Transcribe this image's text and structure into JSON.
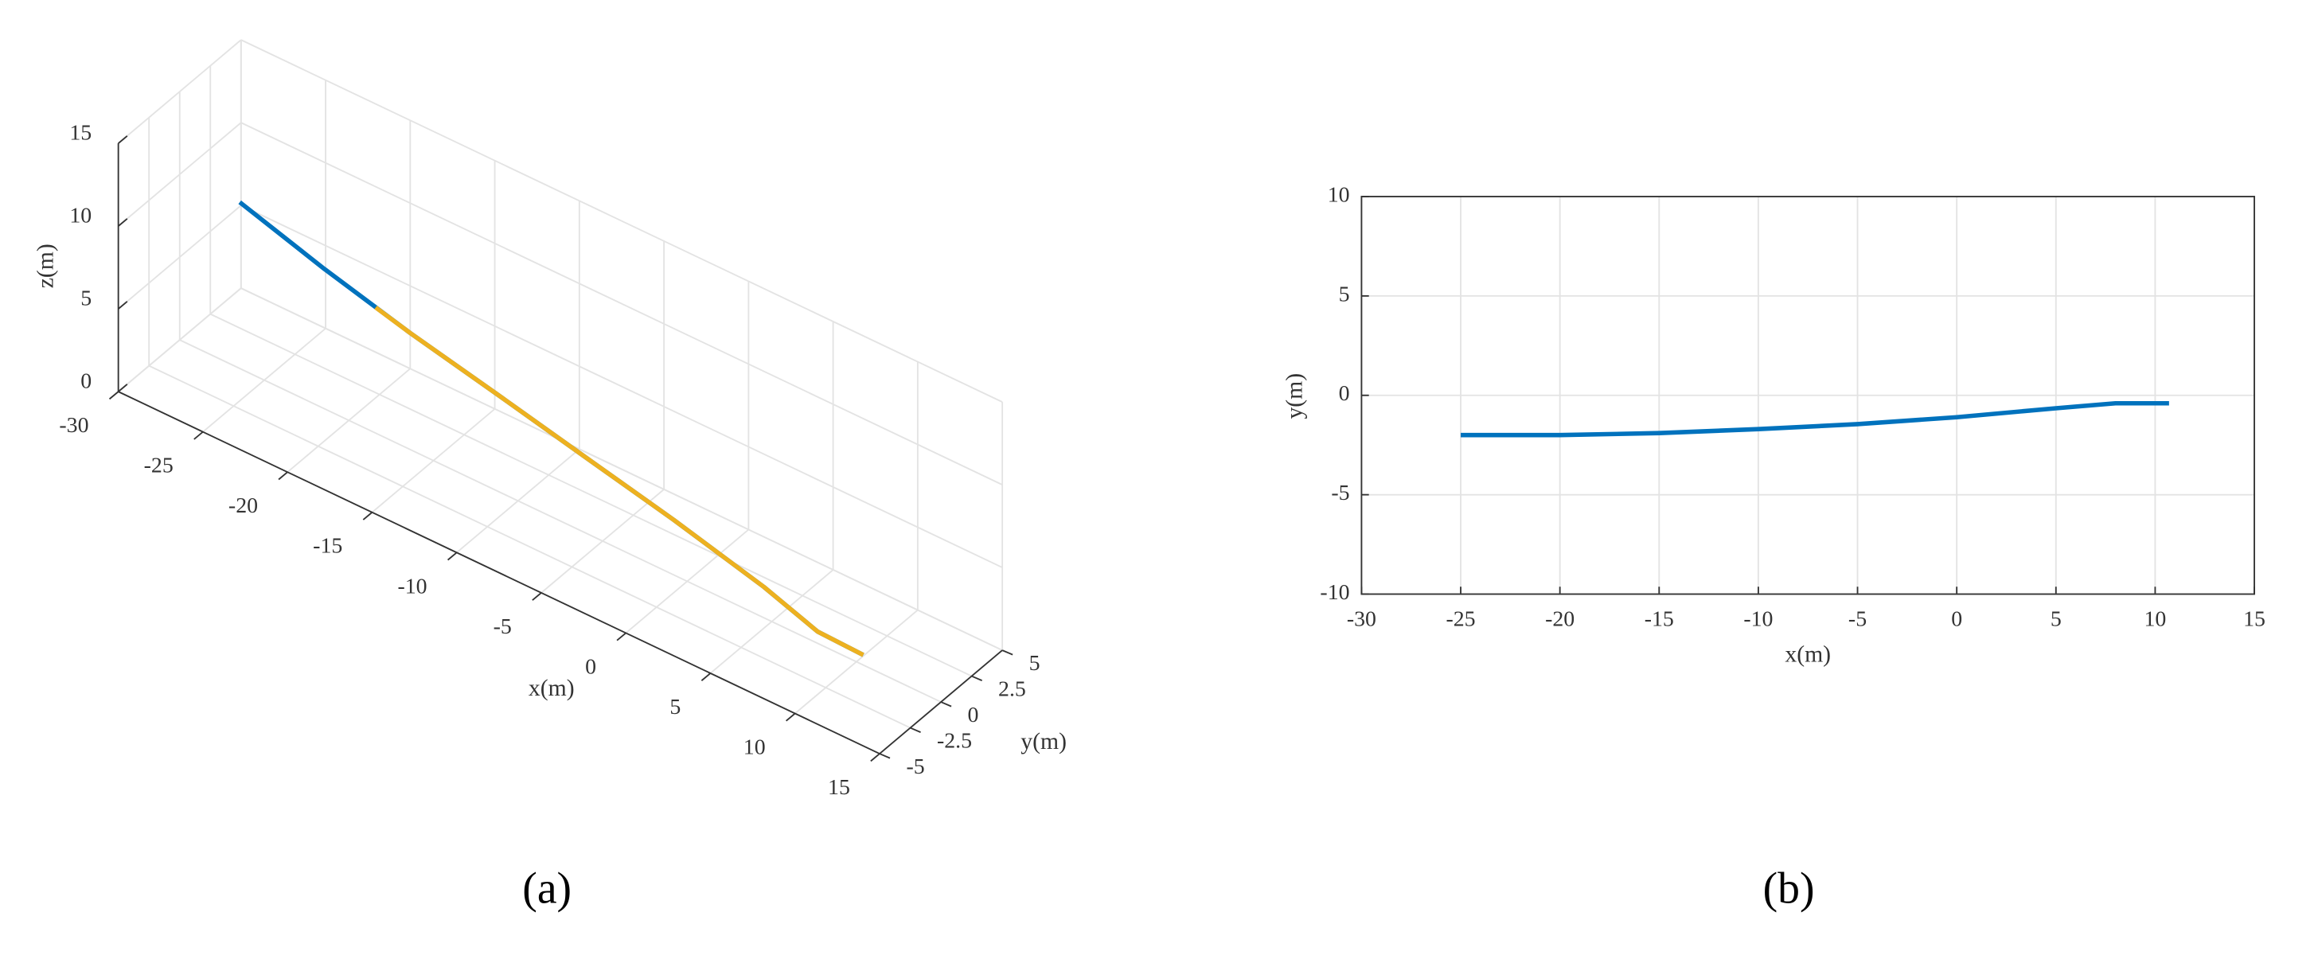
{
  "chart_data": [
    {
      "type": "line3d",
      "caption": "(a)",
      "xlabel": "x(m)",
      "ylabel": "y(m)",
      "zlabel": "z(m)",
      "xlim": [
        -30,
        15
      ],
      "ylim": [
        -5,
        5
      ],
      "zlim": [
        0,
        15
      ],
      "xticks": [
        -30,
        -25,
        -20,
        -15,
        -10,
        -5,
        0,
        5,
        10,
        15
      ],
      "yticks": [
        -5,
        -2.5,
        0,
        2.5,
        5
      ],
      "zticks": [
        0,
        5,
        10,
        15
      ],
      "grid": true,
      "series": [
        {
          "color": "#0072bd",
          "x": [
            -25,
            -20,
            -15,
            -10,
            -5,
            0,
            5,
            8,
            10.7
          ],
          "y": [
            -2,
            -2,
            -1.9,
            -1.7,
            -1.45,
            -1.1,
            -0.65,
            -0.4,
            -0.4
          ],
          "z": [
            12,
            10.4,
            8.9,
            7.5,
            6,
            4.4,
            2.5,
            1.1,
            1
          ]
        },
        {
          "color": "#edb120",
          "x": [
            -17,
            -15,
            -10,
            -5,
            0,
            5,
            8,
            10.7
          ],
          "y": [
            -1.95,
            -1.9,
            -1.7,
            -1.45,
            -1.1,
            -0.65,
            -0.4,
            -0.4
          ],
          "z": [
            9.5,
            8.9,
            7.5,
            6,
            4.4,
            2.5,
            1.1,
            1
          ]
        }
      ]
    },
    {
      "type": "line",
      "caption": "(b)",
      "xlabel": "x(m)",
      "ylabel": "y(m)",
      "xlim": [
        -30,
        15
      ],
      "ylim": [
        -10,
        10
      ],
      "xticks": [
        -30,
        -25,
        -20,
        -15,
        -10,
        -5,
        0,
        5,
        10,
        15
      ],
      "yticks": [
        -10,
        -5,
        0,
        5,
        10
      ],
      "grid": true,
      "series": [
        {
          "color": "#0072bd",
          "x": [
            -25,
            -20,
            -15,
            -10,
            -5,
            0,
            5,
            8,
            10.7
          ],
          "y": [
            -2,
            -2,
            -1.9,
            -1.7,
            -1.45,
            -1.1,
            -0.65,
            -0.4,
            -0.4
          ]
        }
      ]
    }
  ]
}
